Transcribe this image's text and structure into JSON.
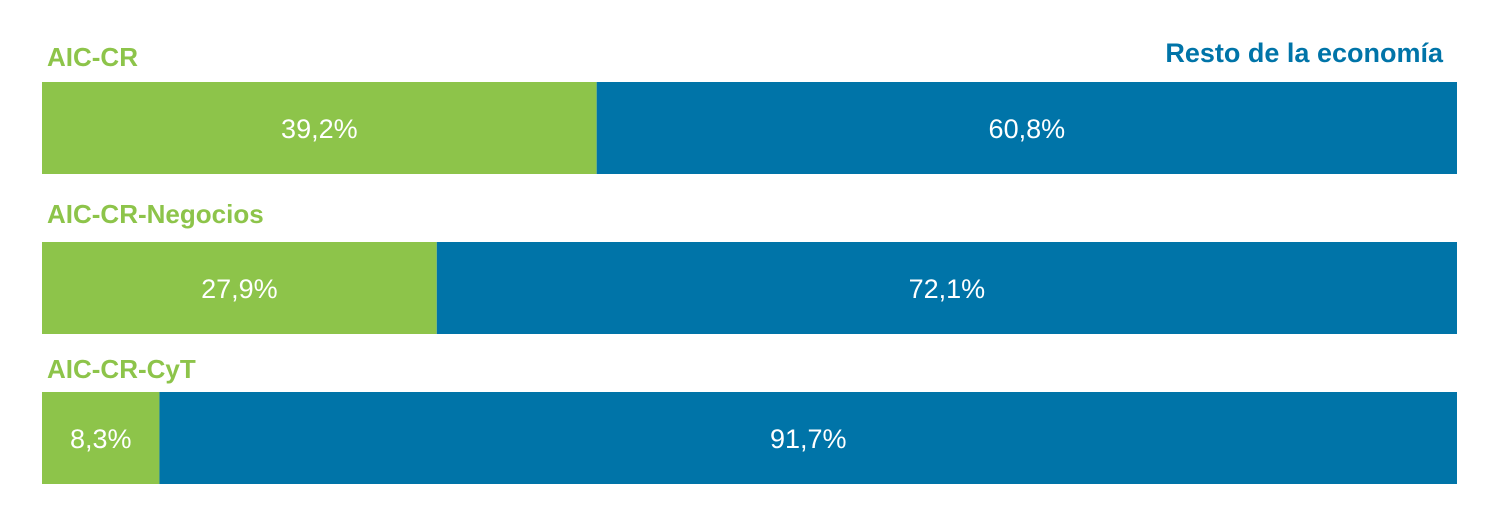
{
  "chart_data": {
    "type": "bar",
    "orientation": "horizontal",
    "stacked": true,
    "normalized": true,
    "unit": "%",
    "categories": [
      "AIC-CR",
      "AIC-CR-Negocios",
      "AIC-CR-CyT"
    ],
    "series": [
      {
        "name": "",
        "color": "#8dc44a",
        "values": [
          39.2,
          27.9,
          8.3
        ],
        "labels": [
          "39,2%",
          "27,9%",
          "8,3%"
        ]
      },
      {
        "name": "Resto de la economía",
        "color": "#0074a8",
        "values": [
          60.8,
          72.1,
          91.7
        ],
        "labels": [
          "60,8%",
          "72,1%",
          "91,7%"
        ]
      }
    ],
    "xlim": [
      0,
      100
    ],
    "grid": false,
    "legend_position": "top-right"
  }
}
